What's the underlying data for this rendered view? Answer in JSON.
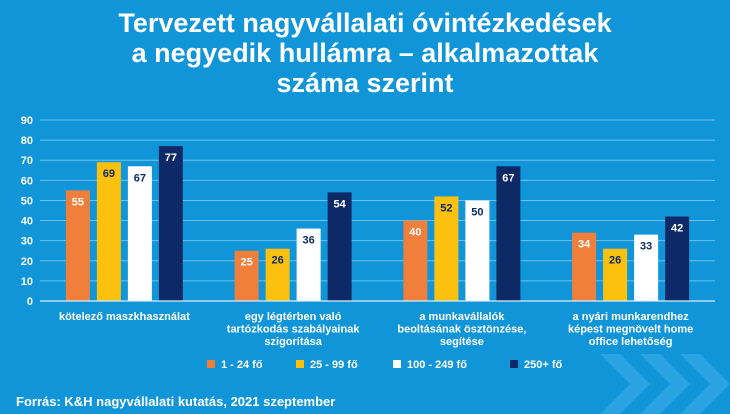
{
  "title_lines": [
    "Tervezett nagyvállalati óvintézkedések",
    "a negyedik hullámra – alkalmazottak",
    "száma szerint"
  ],
  "source": "Forrás: K&H nagyvállalati kutatás, 2021 szeptember",
  "colors": {
    "background": "#1195d9",
    "series": [
      "#ef7f3b",
      "#fcc10f",
      "#ffffff",
      "#0d2a66"
    ]
  },
  "chart_data": {
    "type": "bar",
    "title": "Tervezett nagyvállalati óvintézkedések a negyedik hullámra – alkalmazottak száma szerint",
    "categories": [
      [
        "kötelező maszkhasználat"
      ],
      [
        "egy légtérben való",
        "tartózkodás szabályainak",
        "szigorítása"
      ],
      [
        "a munkavállalók",
        "beoltásának ösztönzése,",
        "segítése"
      ],
      [
        "a nyári munkarendhez",
        "képest megnövelt home",
        "office lehetőség"
      ]
    ],
    "series": [
      {
        "name": "1 - 24 fő",
        "values": [
          55,
          25,
          40,
          34
        ]
      },
      {
        "name": "25 - 99 fő",
        "values": [
          69,
          26,
          52,
          26
        ]
      },
      {
        "name": "100 - 249 fő",
        "values": [
          67,
          36,
          50,
          33
        ]
      },
      {
        "name": "250+ fő",
        "values": [
          77,
          54,
          67,
          42
        ]
      }
    ],
    "yticks": [
      0,
      10,
      20,
      30,
      40,
      50,
      60,
      70,
      80,
      90
    ],
    "ylim": [
      0,
      90
    ],
    "grid": true,
    "legend": "bottom"
  }
}
